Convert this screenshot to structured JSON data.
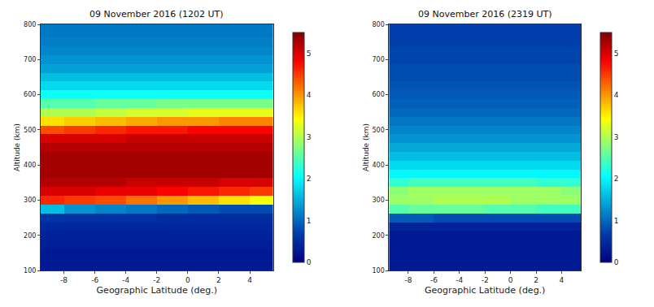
{
  "chart_data": [
    {
      "type": "heatmap",
      "title": "09 November 2016 (1202 UT)",
      "x_label": "Geographic Latitude (deg.)",
      "y_label": "Altitude (km)",
      "color": "Jet",
      "x": [
        -9,
        -7,
        -5,
        -3,
        -1,
        1,
        3,
        5
      ],
      "y": [
        100,
        125,
        150,
        175,
        200,
        225,
        250,
        275,
        300,
        325,
        350,
        375,
        400,
        425,
        450,
        475,
        500,
        525,
        550,
        575,
        600,
        625,
        650,
        675,
        700,
        725,
        750,
        775,
        800
      ],
      "z": [
        [
          0.3,
          0.3,
          0.3,
          0.3,
          0.3,
          0.3,
          0.3,
          0.3
        ],
        [
          0.3,
          0.3,
          0.3,
          0.3,
          0.3,
          0.3,
          0.3,
          0.3
        ],
        [
          0.3,
          0.3,
          0.3,
          0.3,
          0.3,
          0.3,
          0.3,
          0.3
        ],
        [
          0.35,
          0.35,
          0.35,
          0.35,
          0.35,
          0.35,
          0.35,
          0.35
        ],
        [
          0.4,
          0.4,
          0.4,
          0.4,
          0.4,
          0.4,
          0.4,
          0.4
        ],
        [
          0.45,
          0.45,
          0.45,
          0.45,
          0.45,
          0.45,
          0.45,
          0.45
        ],
        [
          0.6,
          0.55,
          0.55,
          0.55,
          0.5,
          0.5,
          0.5,
          0.5
        ],
        [
          1.6,
          1.3,
          1.2,
          1.1,
          1.0,
          0.9,
          0.8,
          0.8
        ],
        [
          4.6,
          4.5,
          4.4,
          4.2,
          4.0,
          3.8,
          3.6,
          3.4
        ],
        [
          5.0,
          5.0,
          4.9,
          4.9,
          4.8,
          4.7,
          4.6,
          4.5
        ],
        [
          5.2,
          5.2,
          5.2,
          5.1,
          5.1,
          5.1,
          5.0,
          5.0
        ],
        [
          5.3,
          5.3,
          5.3,
          5.3,
          5.3,
          5.3,
          5.3,
          5.3
        ],
        [
          5.3,
          5.3,
          5.3,
          5.3,
          5.3,
          5.3,
          5.3,
          5.3
        ],
        [
          5.3,
          5.3,
          5.3,
          5.3,
          5.3,
          5.3,
          5.3,
          5.3
        ],
        [
          5.2,
          5.2,
          5.2,
          5.2,
          5.2,
          5.2,
          5.2,
          5.2
        ],
        [
          5.0,
          5.0,
          5.0,
          5.1,
          5.1,
          5.1,
          5.1,
          5.1
        ],
        [
          4.4,
          4.5,
          4.6,
          4.7,
          4.7,
          4.8,
          4.8,
          4.8
        ],
        [
          3.6,
          3.7,
          3.8,
          3.9,
          4.0,
          4.0,
          4.1,
          4.1
        ],
        [
          3.0,
          3.0,
          3.1,
          3.2,
          3.2,
          3.3,
          3.3,
          3.3
        ],
        [
          2.5,
          2.5,
          2.6,
          2.6,
          2.7,
          2.7,
          2.7,
          2.7
        ],
        [
          2.1,
          2.1,
          2.1,
          2.1,
          2.1,
          2.1,
          2.1,
          2.1
        ],
        [
          1.8,
          1.8,
          1.8,
          1.8,
          1.8,
          1.8,
          1.8,
          1.8
        ],
        [
          1.6,
          1.6,
          1.6,
          1.6,
          1.6,
          1.6,
          1.6,
          1.6
        ],
        [
          1.4,
          1.4,
          1.4,
          1.4,
          1.4,
          1.4,
          1.4,
          1.4
        ],
        [
          1.3,
          1.3,
          1.3,
          1.3,
          1.3,
          1.3,
          1.3,
          1.3
        ],
        [
          1.2,
          1.2,
          1.2,
          1.2,
          1.2,
          1.2,
          1.2,
          1.2
        ],
        [
          1.15,
          1.15,
          1.15,
          1.15,
          1.15,
          1.15,
          1.15,
          1.15
        ],
        [
          1.1,
          1.1,
          1.1,
          1.1,
          1.1,
          1.1,
          1.1,
          1.1
        ],
        [
          1.1,
          1.1,
          1.1,
          1.1,
          1.1,
          1.1,
          1.1,
          1.1
        ]
      ],
      "xlim": [
        -9.5,
        5.5
      ],
      "xticks": [
        -8,
        -6,
        -4,
        -2,
        0,
        2,
        4
      ],
      "ylim": [
        100,
        800
      ],
      "yticks": [
        100,
        200,
        300,
        400,
        500,
        600,
        700,
        800
      ],
      "zlim": [
        0,
        5.5
      ],
      "zticks": [
        0,
        1,
        2,
        3,
        4,
        5
      ]
    },
    {
      "type": "heatmap",
      "title": "09 November 2016 (2319 UT)",
      "x_label": "Geographic Latitude (deg.)",
      "y_label": "Altitude (km)",
      "color": "Jet",
      "x": [
        -9,
        -7,
        -5,
        -3,
        -1,
        1,
        3,
        5
      ],
      "y": [
        100,
        125,
        150,
        175,
        200,
        225,
        250,
        275,
        300,
        325,
        350,
        375,
        400,
        425,
        450,
        475,
        500,
        525,
        550,
        575,
        600,
        625,
        650,
        675,
        700,
        725,
        750,
        775,
        800
      ],
      "z": [
        [
          0.3,
          0.3,
          0.3,
          0.3,
          0.3,
          0.3,
          0.3,
          0.3
        ],
        [
          0.3,
          0.3,
          0.3,
          0.3,
          0.3,
          0.3,
          0.3,
          0.3
        ],
        [
          0.3,
          0.3,
          0.3,
          0.3,
          0.3,
          0.3,
          0.3,
          0.3
        ],
        [
          0.3,
          0.3,
          0.3,
          0.3,
          0.3,
          0.3,
          0.3,
          0.3
        ],
        [
          0.3,
          0.3,
          0.3,
          0.3,
          0.3,
          0.3,
          0.3,
          0.3
        ],
        [
          0.4,
          0.4,
          0.4,
          0.4,
          0.4,
          0.4,
          0.4,
          0.4
        ],
        [
          0.9,
          0.9,
          0.8,
          0.8,
          0.8,
          0.8,
          0.8,
          0.8
        ],
        [
          2.5,
          2.6,
          2.6,
          2.6,
          2.5,
          2.5,
          2.4,
          2.4
        ],
        [
          2.9,
          2.9,
          3.0,
          3.0,
          3.0,
          2.9,
          2.9,
          2.9
        ],
        [
          2.8,
          2.9,
          2.9,
          2.9,
          2.9,
          2.9,
          2.9,
          2.8
        ],
        [
          2.3,
          2.4,
          2.4,
          2.4,
          2.4,
          2.4,
          2.3,
          2.3
        ],
        [
          2.0,
          2.0,
          2.0,
          2.0,
          2.0,
          2.0,
          2.0,
          2.0
        ],
        [
          1.8,
          1.8,
          1.8,
          1.8,
          1.8,
          1.8,
          1.8,
          1.8
        ],
        [
          1.6,
          1.6,
          1.6,
          1.6,
          1.6,
          1.6,
          1.6,
          1.6
        ],
        [
          1.45,
          1.45,
          1.45,
          1.45,
          1.45,
          1.45,
          1.45,
          1.45
        ],
        [
          1.3,
          1.3,
          1.3,
          1.3,
          1.3,
          1.3,
          1.3,
          1.3
        ],
        [
          1.2,
          1.2,
          1.2,
          1.2,
          1.2,
          1.2,
          1.2,
          1.2
        ],
        [
          1.1,
          1.1,
          1.1,
          1.1,
          1.1,
          1.1,
          1.1,
          1.1
        ],
        [
          1.0,
          1.0,
          1.0,
          1.0,
          1.0,
          1.0,
          1.0,
          1.0
        ],
        [
          0.95,
          0.95,
          0.95,
          0.95,
          0.95,
          0.95,
          0.95,
          0.95
        ],
        [
          0.9,
          0.9,
          0.9,
          0.9,
          0.9,
          0.9,
          0.9,
          0.9
        ],
        [
          0.85,
          0.85,
          0.85,
          0.85,
          0.85,
          0.85,
          0.85,
          0.85
        ],
        [
          0.8,
          0.8,
          0.8,
          0.8,
          0.8,
          0.8,
          0.8,
          0.8
        ],
        [
          0.8,
          0.8,
          0.8,
          0.8,
          0.8,
          0.8,
          0.8,
          0.8
        ],
        [
          0.75,
          0.75,
          0.75,
          0.75,
          0.75,
          0.75,
          0.75,
          0.75
        ],
        [
          0.75,
          0.75,
          0.75,
          0.75,
          0.75,
          0.75,
          0.75,
          0.75
        ],
        [
          0.7,
          0.7,
          0.7,
          0.7,
          0.7,
          0.7,
          0.7,
          0.7
        ],
        [
          0.7,
          0.7,
          0.7,
          0.7,
          0.7,
          0.7,
          0.7,
          0.7
        ],
        [
          0.7,
          0.7,
          0.7,
          0.7,
          0.7,
          0.7,
          0.7,
          0.7
        ]
      ],
      "xlim": [
        -9.5,
        5.5
      ],
      "xticks": [
        -8,
        -6,
        -4,
        -2,
        0,
        2,
        4
      ],
      "ylim": [
        100,
        800
      ],
      "yticks": [
        100,
        200,
        300,
        400,
        500,
        600,
        700,
        800
      ],
      "zlim": [
        0,
        5.5
      ],
      "zticks": [
        0,
        1,
        2,
        3,
        4,
        5
      ]
    }
  ]
}
